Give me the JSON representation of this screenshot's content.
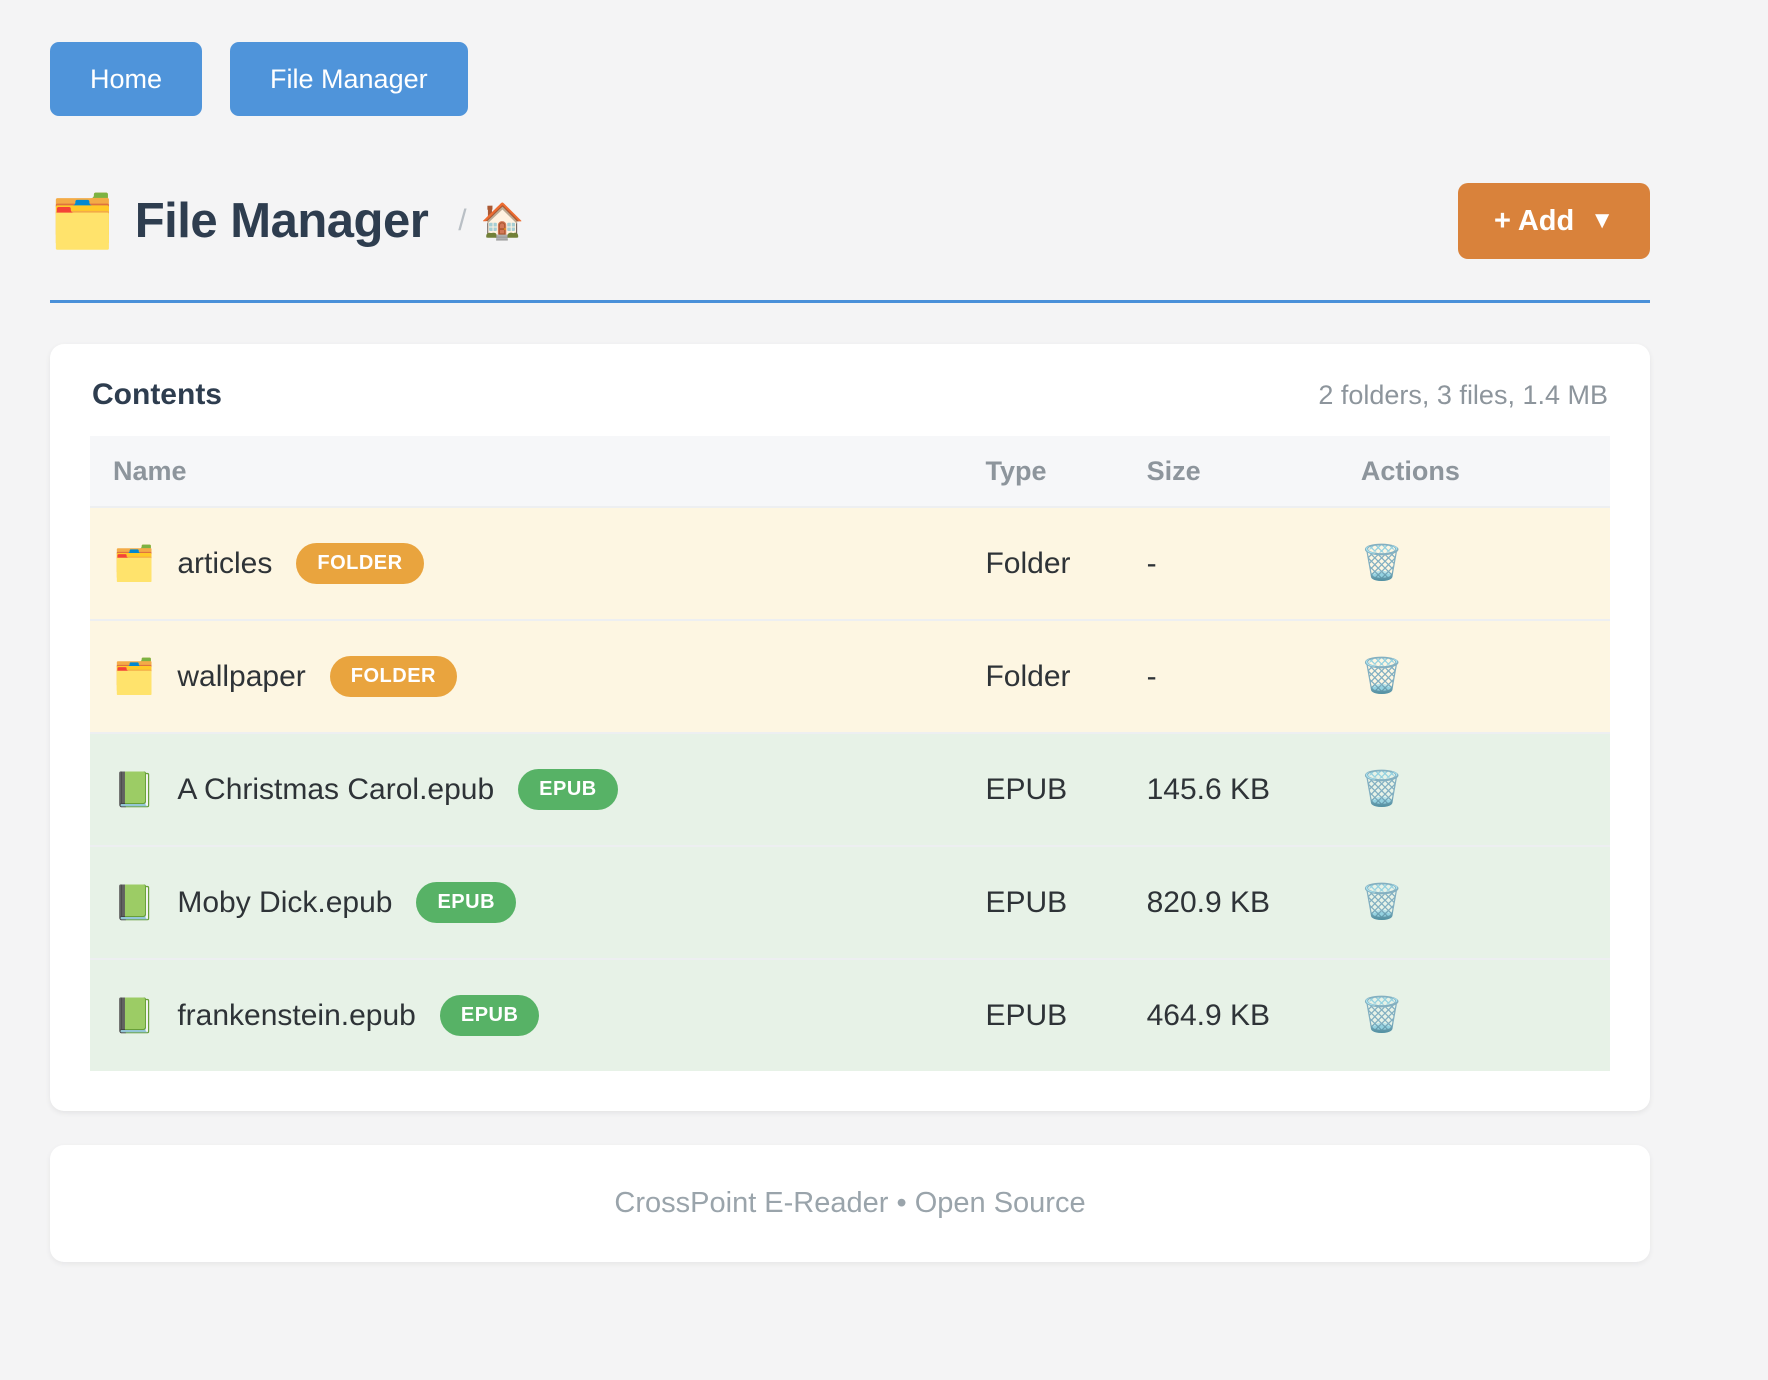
{
  "nav": {
    "home_label": "Home",
    "file_manager_label": "File Manager"
  },
  "header": {
    "title": "File Manager",
    "title_icon": "🗂️",
    "breadcrumb_separator": "/",
    "breadcrumb_home_icon": "🏠",
    "add_button_label": "+ Add",
    "add_button_caret": "▼"
  },
  "contents": {
    "title": "Contents",
    "summary": "2 folders, 3 files, 1.4 MB",
    "columns": [
      "Name",
      "Type",
      "Size",
      "Actions"
    ],
    "rows": [
      {
        "icon": "🗂️",
        "name": "articles",
        "badge": "FOLDER",
        "type": "Folder",
        "size": "-",
        "action_icon": "🗑️"
      },
      {
        "icon": "🗂️",
        "name": "wallpaper",
        "badge": "FOLDER",
        "type": "Folder",
        "size": "-",
        "action_icon": "🗑️"
      },
      {
        "icon": "📗",
        "name": "A Christmas Carol.epub",
        "badge": "EPUB",
        "type": "EPUB",
        "size": "145.6 KB",
        "action_icon": "🗑️"
      },
      {
        "icon": "📗",
        "name": "Moby Dick.epub",
        "badge": "EPUB",
        "type": "EPUB",
        "size": "820.9 KB",
        "action_icon": "🗑️"
      },
      {
        "icon": "📗",
        "name": "frankenstein.epub",
        "badge": "EPUB",
        "type": "EPUB",
        "size": "464.9 KB",
        "action_icon": "🗑️"
      }
    ]
  },
  "footer": {
    "text": "CrossPoint E-Reader • Open Source"
  },
  "colors": {
    "accent_blue": "#4f94da",
    "rule_blue": "#4a90d9",
    "accent_orange": "#d9823b",
    "badge_folder": "#e9a43e",
    "badge_epub": "#57b266",
    "row_folder_bg": "#fdf6e2",
    "row_epub_bg": "#e7f2e7",
    "page_bg": "#f4f4f5"
  }
}
